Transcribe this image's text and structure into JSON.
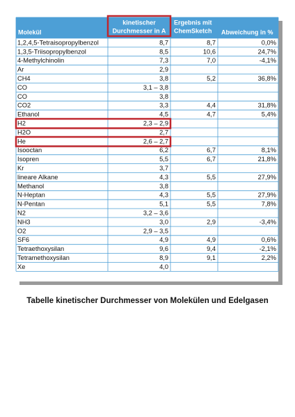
{
  "table": {
    "header": [
      [
        "Molekül"
      ],
      [
        "kinetischer",
        "Durchmesser in A"
      ],
      [
        "Ergebnis mit",
        "ChemSketch"
      ],
      [
        "Abweichung in %"
      ]
    ],
    "rows": [
      [
        "1,2,4,5-Tetraisopropylbenzol",
        "8,7",
        "8,7",
        "0,0%"
      ],
      [
        "1,3,5-Triisopropylbenzol",
        "8,5",
        "10,6",
        "24,7%"
      ],
      [
        "4-Methylchinolin",
        "7,3",
        "7,0",
        "-4,1%"
      ],
      [
        "Ar",
        "2,9",
        null,
        null
      ],
      [
        "CH4",
        "3,8",
        "5,2",
        "36,8%"
      ],
      [
        "CO",
        "3,1 – 3,8",
        null,
        null
      ],
      [
        "CO",
        "3,8",
        null,
        null
      ],
      [
        "CO2",
        "3,3",
        "4,4",
        "31,8%"
      ],
      [
        "Ethanol",
        "4,5",
        "4,7",
        "5,4%"
      ],
      [
        "H2",
        "2,3 – 2,9",
        null,
        null
      ],
      [
        "H2O",
        "2,7",
        null,
        null
      ],
      [
        "He",
        "2,6 – 2,7",
        null,
        null
      ],
      [
        "Isooctan",
        "6,2",
        "6,7",
        "8,1%"
      ],
      [
        "Isopren",
        "5,5",
        "6,7",
        "21,8%"
      ],
      [
        "Kr",
        "3,7",
        null,
        null
      ],
      [
        "lineare Alkane",
        "4,3",
        "5,5",
        "27,9%"
      ],
      [
        "Methanol",
        "3,8",
        null,
        null
      ],
      [
        "N-Heptan",
        "4,3",
        "5,5",
        "27,9%"
      ],
      [
        "N-Pentan",
        "5,1",
        "5,5",
        "7,8%"
      ],
      [
        "N2",
        "3,2 – 3,6",
        null,
        null
      ],
      [
        "NH3",
        "3,0",
        "2,9",
        "-3,4%"
      ],
      [
        "O2",
        "2,9 – 3,5",
        null,
        null
      ],
      [
        "SF6",
        "4,9",
        "4,9",
        "0,6%"
      ],
      [
        "Tetraethoxysilan",
        "9,6",
        "9,4",
        "-2,1%"
      ],
      [
        "Tetramethoxysilan",
        "8,9",
        "9,1",
        "2,2%"
      ],
      [
        "Xe",
        "4,0",
        null,
        null
      ]
    ],
    "caption": "Tabelle kinetischer Durchmesser von Molekülen und Edelgasen"
  }
}
